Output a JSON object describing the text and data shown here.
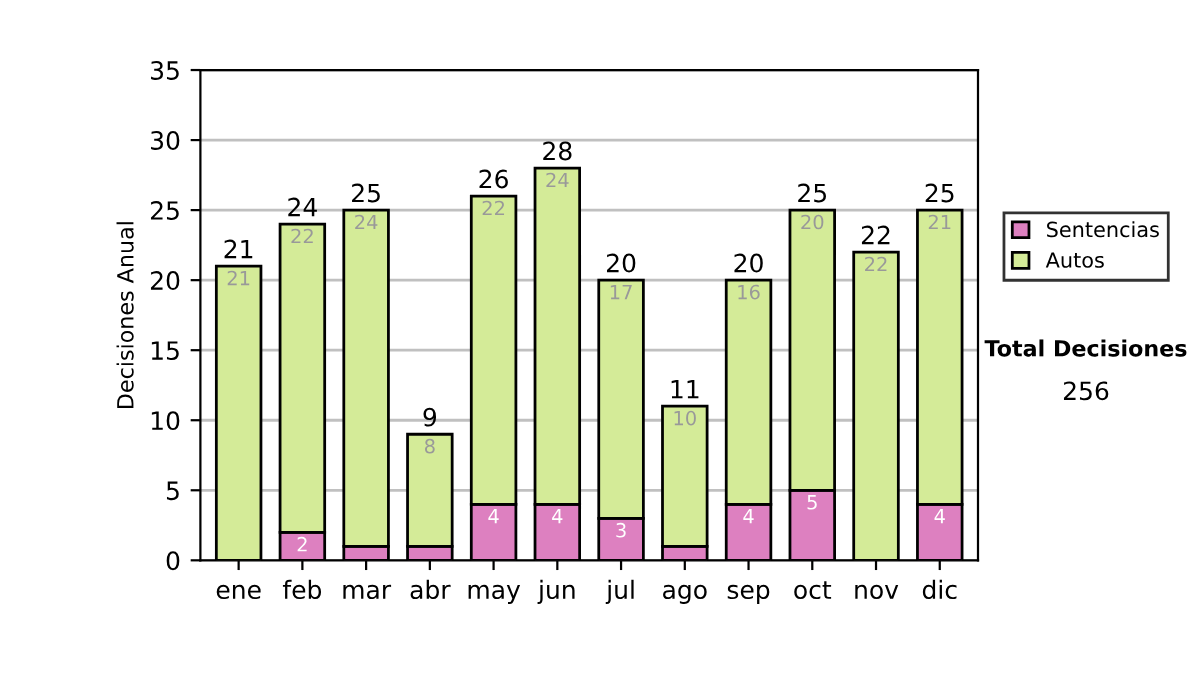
{
  "chart_data": {
    "type": "bar",
    "stacked": true,
    "ylabel": "Decisiones Anual",
    "categories": [
      "ene",
      "feb",
      "mar",
      "abr",
      "may",
      "jun",
      "jul",
      "ago",
      "sep",
      "oct",
      "nov",
      "dic"
    ],
    "series": [
      {
        "name": "Sentencias",
        "color": "#dd80c0",
        "values": [
          0,
          2,
          1,
          1,
          4,
          4,
          3,
          1,
          4,
          5,
          0,
          4
        ],
        "value_labels": [
          null,
          "2",
          null,
          null,
          "4",
          "4",
          "3",
          null,
          "4",
          "5",
          null,
          "4"
        ]
      },
      {
        "name": "Autos",
        "color": "#d4eb98",
        "values": [
          21,
          22,
          24,
          8,
          22,
          24,
          17,
          10,
          16,
          20,
          22,
          21
        ],
        "value_labels": [
          "21",
          "22",
          "24",
          "8",
          "22",
          "24",
          "17",
          "10",
          "16",
          "20",
          "22",
          "21"
        ]
      }
    ],
    "totals": [
      "21",
      "24",
      "25",
      "9",
      "26",
      "28",
      "20",
      "11",
      "20",
      "25",
      "22",
      "25"
    ],
    "ylim": [
      0,
      35
    ],
    "yticks": [
      0,
      5,
      10,
      15,
      20,
      25,
      30,
      35
    ],
    "grid": "y",
    "legend": "right",
    "annotations": [
      "Total Decisiones",
      "256"
    ]
  }
}
